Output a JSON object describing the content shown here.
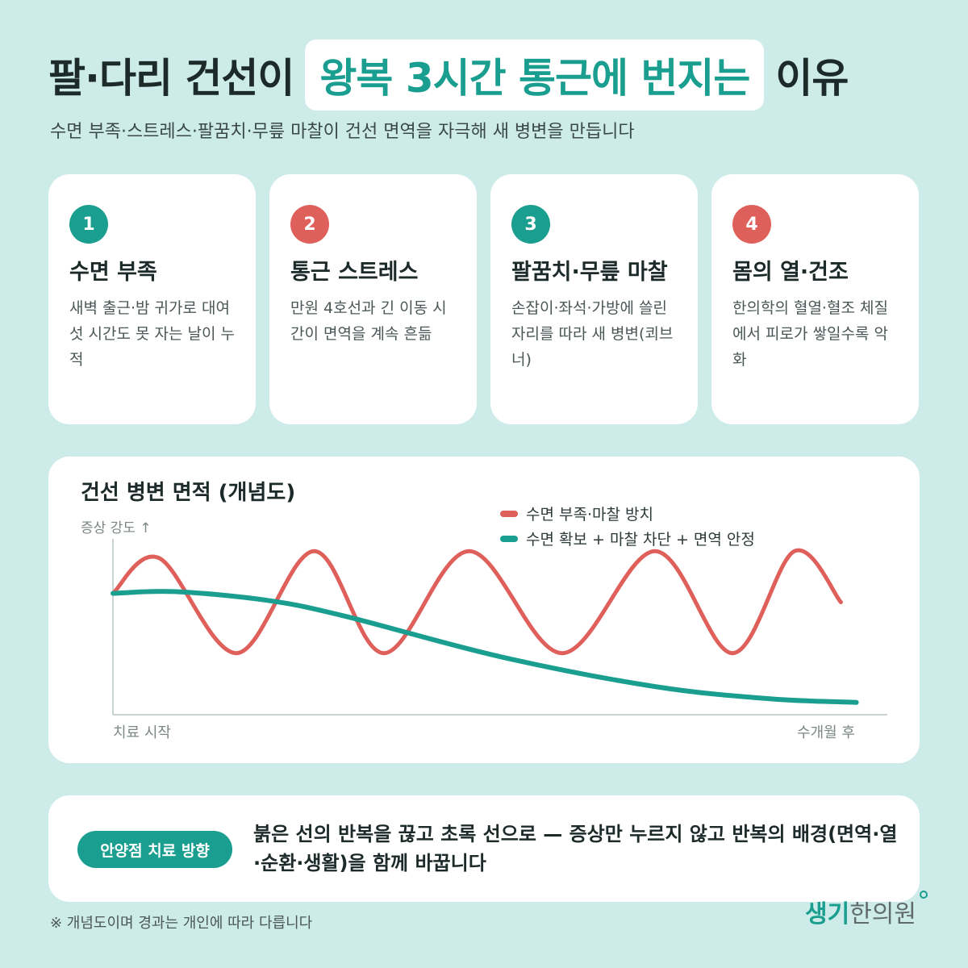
{
  "header": {
    "title_before": "팔·다리 건선이",
    "title_highlight": "왕복 3시간 통근에 번지는",
    "title_after": "이유",
    "subtitle": "수면 부족·스트레스·팔꿈치·무릎 마찰이 건선 면역을 자극해 새 병변을 만듭니다"
  },
  "cards": [
    {
      "number": "1",
      "title": "수면 부족",
      "desc": "새벽 출근·밤 귀가로 대여섯 시간도 못 자는 날이 누적",
      "badge_color": "#1a9e8f"
    },
    {
      "number": "2",
      "title": "통근 스트레스",
      "desc": "만원 4호선과 긴 이동 시간이 면역을 계속 흔듦",
      "badge_color": "#df5f5a"
    },
    {
      "number": "3",
      "title": "팔꿈치·무릎 마찰",
      "desc": "손잡이·좌석·가방에 쓸린 자리를 따라 새 병변(쾨브너)",
      "badge_color": "#1a9e8f"
    },
    {
      "number": "4",
      "title": "몸의 열·건조",
      "desc": "한의학의 혈열·혈조 체질에서 피로가 쌓일수록 악화",
      "badge_color": "#df5f5a"
    }
  ],
  "chart_data": {
    "type": "line",
    "title": "건선 병변 면적 (개념도)",
    "ylabel": "증상 강도 ↑",
    "x_start_label": "치료 시작",
    "x_end_label": "수개월 후",
    "xlim": [
      0,
      1
    ],
    "ylim": [
      0,
      1
    ],
    "grid": false,
    "legend_position": "top-right",
    "series": [
      {
        "name": "수면 부족·마찰 방치",
        "color": "#df5f5a",
        "x": [
          0.0,
          0.06,
          0.16,
          0.26,
          0.35,
          0.46,
          0.58,
          0.7,
          0.8,
          0.88,
          0.94
        ],
        "values": [
          0.69,
          0.89,
          0.35,
          0.93,
          0.35,
          0.93,
          0.35,
          0.93,
          0.35,
          0.93,
          0.64
        ]
      },
      {
        "name": "수면 확보 + 마찰 차단 + 면역 안정",
        "color": "#1a9e8f",
        "x": [
          0.0,
          0.08,
          0.2,
          0.3,
          0.5,
          0.7,
          0.85,
          0.96
        ],
        "values": [
          0.69,
          0.7,
          0.65,
          0.56,
          0.33,
          0.16,
          0.09,
          0.07
        ]
      }
    ]
  },
  "summary": {
    "label": "안양점 치료 방향",
    "text": "붉은 선의 반복을 끊고 초록 선으로 — 증상만 누르지 않고 반복의 배경(면역·열·순환·생활)을 함께 바꿉니다"
  },
  "footnote": "※ 개념도이며 경과는 개인에 따라 다릅니다",
  "logo": {
    "part1": "생기",
    "part2": "한의원"
  }
}
